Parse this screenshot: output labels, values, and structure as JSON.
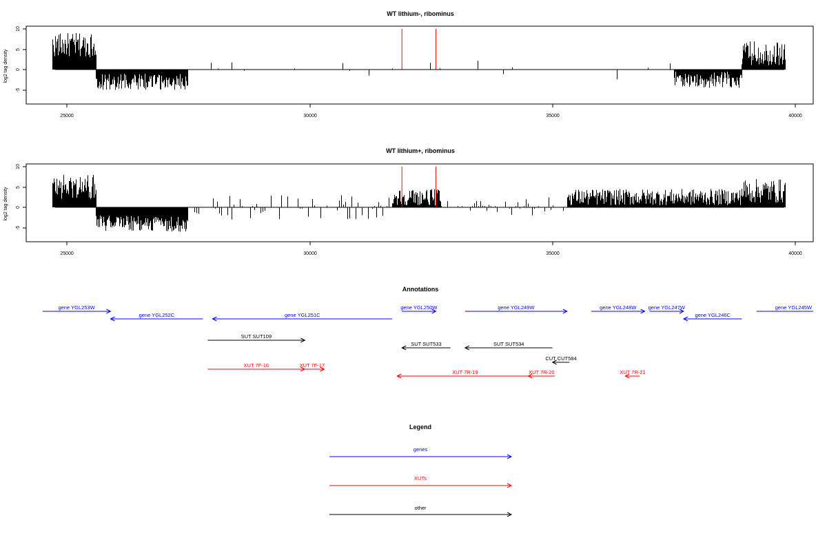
{
  "panels": [
    {
      "title": "WT lithium-, ribominus",
      "ylabel": "log2 tag density",
      "ylim": [
        -8,
        10
      ],
      "xlim": [
        24500,
        40400
      ],
      "y_ticks": [
        "-5",
        "0",
        "5",
        "10"
      ],
      "x_ticks": [
        "25000",
        "30000",
        "35000",
        "40000"
      ],
      "markers": [
        31900,
        32600
      ],
      "marker_color": "#ff0000",
      "density": "sparse"
    },
    {
      "title": "WT lithium+, ribominus",
      "ylabel": "log2 tag density",
      "ylim": [
        -8,
        10
      ],
      "xlim": [
        24500,
        40400
      ],
      "y_ticks": [
        "-5",
        "0",
        "5",
        "10"
      ],
      "x_ticks": [
        "25000",
        "30000",
        "35000",
        "40000"
      ],
      "markers": [
        31900,
        32600
      ],
      "marker_color": "#ff0000",
      "density": "dense"
    }
  ],
  "annotations": {
    "title": "Annotations",
    "items": [
      {
        "label": "gene YGL253W",
        "start": 24500,
        "end": 25900,
        "dir": "+",
        "type": "genes"
      },
      {
        "label": "gene YGL252C",
        "start": 25900,
        "end": 27800,
        "dir": "-",
        "type": "genes"
      },
      {
        "label": "gene YGL251C",
        "start": 28000,
        "end": 31700,
        "dir": "-",
        "type": "genes"
      },
      {
        "label": "gene YGL250W",
        "start": 31900,
        "end": 32600,
        "dir": "+",
        "type": "genes"
      },
      {
        "label": "gene YGL249W",
        "start": 33200,
        "end": 35300,
        "dir": "+",
        "type": "genes"
      },
      {
        "label": "gene YGL248W",
        "start": 35800,
        "end": 36900,
        "dir": "+",
        "type": "genes"
      },
      {
        "label": "gene YGL247W",
        "start": 37000,
        "end": 37700,
        "dir": "+",
        "type": "genes"
      },
      {
        "label": "gene YGL246C",
        "start": 37700,
        "end": 38900,
        "dir": "-",
        "type": "genes"
      },
      {
        "label": "gene YGL245W",
        "start": 39200,
        "end": 40400,
        "dir": "+",
        "type": "genes"
      },
      {
        "label": "SUT SUT109",
        "start": 27900,
        "end": 29900,
        "dir": "+",
        "type": "other"
      },
      {
        "label": "SUT SUT533",
        "start": 31900,
        "end": 32900,
        "dir": "-",
        "type": "other"
      },
      {
        "label": "SUT SUT534",
        "start": 33200,
        "end": 35000,
        "dir": "-",
        "type": "other"
      },
      {
        "label": "CUT CUT584",
        "start": 35000,
        "end": 35350,
        "dir": "-",
        "type": "other"
      },
      {
        "label": "XUT 7F-16",
        "start": 27900,
        "end": 29900,
        "dir": "+",
        "type": "XUTs"
      },
      {
        "label": "XUT 7F-17",
        "start": 29800,
        "end": 30300,
        "dir": "+",
        "type": "XUTs"
      },
      {
        "label": "XUT 7R-19",
        "start": 31800,
        "end": 34600,
        "dir": "-",
        "type": "XUTs"
      },
      {
        "label": "XUT 7R-20",
        "start": 34500,
        "end": 35050,
        "dir": "-",
        "type": "XUTs"
      },
      {
        "label": "XUT 7R-21",
        "start": 36500,
        "end": 36800,
        "dir": "-",
        "type": "XUTs"
      }
    ]
  },
  "legend": {
    "title": "Legend",
    "items": [
      {
        "label": "genes",
        "type": "genes"
      },
      {
        "label": "XUTs",
        "type": "XUTs"
      },
      {
        "label": "other",
        "type": "other"
      }
    ]
  },
  "colors": {
    "genes": "#0000ff",
    "XUTs": "#ff0000",
    "other": "#000000"
  },
  "chart_data": [
    {
      "type": "bar",
      "title": "WT lithium-, ribominus",
      "xlabel": "",
      "ylabel": "log2 tag density",
      "xlim": [
        24500,
        40400
      ],
      "ylim": [
        -8,
        10
      ],
      "segments": [
        {
          "from": 24700,
          "to": 25600,
          "strand": "+",
          "level": 6,
          "var": 3
        },
        {
          "from": 25600,
          "to": 27500,
          "strand": "-",
          "level": -3,
          "var": 2
        },
        {
          "from": 27500,
          "to": 31700,
          "strand": "+",
          "level": 0.5,
          "var": 2
        },
        {
          "from": 31700,
          "to": 32700,
          "strand": "+",
          "level": 1,
          "var": 2
        },
        {
          "from": 32700,
          "to": 37500,
          "strand": "+",
          "level": 0.5,
          "var": 2
        },
        {
          "from": 37500,
          "to": 38900,
          "strand": "-",
          "level": -2.5,
          "var": 2
        },
        {
          "from": 38900,
          "to": 39800,
          "strand": "+",
          "level": 4,
          "var": 3
        }
      ],
      "markers": [
        31900,
        32600
      ]
    },
    {
      "type": "bar",
      "title": "WT lithium+, ribominus",
      "xlabel": "",
      "ylabel": "log2 tag density",
      "xlim": [
        24500,
        40400
      ],
      "ylim": [
        -8,
        10
      ],
      "segments": [
        {
          "from": 24700,
          "to": 25600,
          "strand": "+",
          "level": 5,
          "var": 3
        },
        {
          "from": 25600,
          "to": 27500,
          "strand": "-",
          "level": -4,
          "var": 2
        },
        {
          "from": 27500,
          "to": 31700,
          "strand": "+",
          "level": 1.5,
          "var": 1.5
        },
        {
          "from": 31700,
          "to": 32700,
          "strand": "+",
          "level": 2.5,
          "var": 2
        },
        {
          "from": 32700,
          "to": 35300,
          "strand": "+",
          "level": 1,
          "var": 1.5
        },
        {
          "from": 35300,
          "to": 38900,
          "strand": "+",
          "level": 2.5,
          "var": 2
        },
        {
          "from": 38900,
          "to": 39800,
          "strand": "+",
          "level": 4,
          "var": 3
        }
      ],
      "markers": [
        31900,
        32600
      ]
    }
  ]
}
